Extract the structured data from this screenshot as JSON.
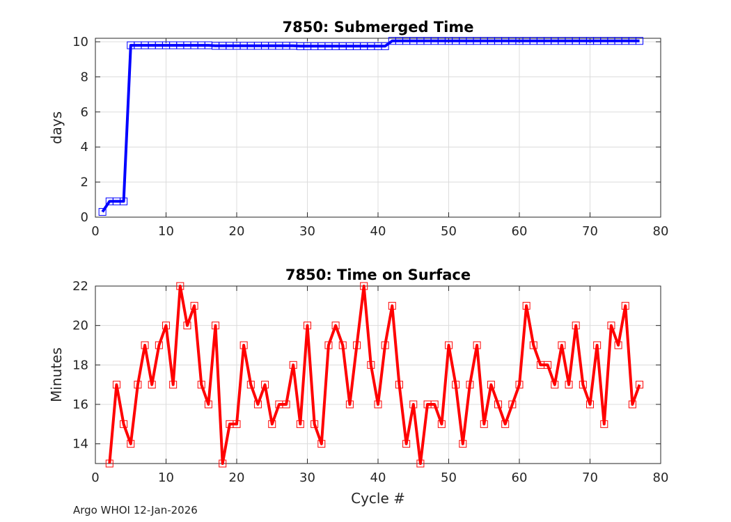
{
  "footer": "Argo WHOI 12-Jan-2026",
  "chart_data": [
    {
      "type": "line",
      "title": "7850: Submerged Time",
      "xlabel": "",
      "ylabel": "days",
      "xlim": [
        0,
        80
      ],
      "ylim": [
        0,
        10.2
      ],
      "xticks": [
        0,
        10,
        20,
        30,
        40,
        50,
        60,
        70,
        80
      ],
      "yticks": [
        0,
        2,
        4,
        6,
        8,
        10
      ],
      "grid": true,
      "marker": "square",
      "color": "#0000ff",
      "x": [
        1,
        2,
        3,
        4,
        5,
        6,
        7,
        8,
        9,
        10,
        11,
        12,
        13,
        14,
        15,
        16,
        17,
        18,
        19,
        20,
        21,
        22,
        23,
        24,
        25,
        26,
        27,
        28,
        29,
        30,
        31,
        32,
        33,
        34,
        35,
        36,
        37,
        38,
        39,
        40,
        41,
        42,
        43,
        44,
        45,
        46,
        47,
        48,
        49,
        50,
        51,
        52,
        53,
        54,
        55,
        56,
        57,
        58,
        59,
        60,
        61,
        62,
        63,
        64,
        65,
        66,
        67,
        68,
        69,
        70,
        71,
        72,
        73,
        74,
        75,
        76,
        77
      ],
      "y": [
        0.3,
        0.9,
        0.9,
        0.9,
        9.8,
        9.8,
        9.8,
        9.8,
        9.8,
        9.8,
        9.8,
        9.8,
        9.8,
        9.8,
        9.8,
        9.8,
        9.77,
        9.77,
        9.77,
        9.77,
        9.77,
        9.77,
        9.77,
        9.77,
        9.77,
        9.77,
        9.77,
        9.77,
        9.75,
        9.75,
        9.75,
        9.75,
        9.75,
        9.75,
        9.75,
        9.75,
        9.75,
        9.75,
        9.75,
        9.75,
        9.75,
        10.05,
        10.05,
        10.05,
        10.05,
        10.05,
        10.05,
        10.05,
        10.05,
        10.05,
        10.05,
        10.05,
        10.05,
        10.05,
        10.05,
        10.05,
        10.05,
        10.05,
        10.05,
        10.05,
        10.05,
        10.05,
        10.05,
        10.05,
        10.05,
        10.05,
        10.05,
        10.05,
        10.05,
        10.05,
        10.05,
        10.05,
        10.05,
        10.05,
        10.05,
        10.05,
        10.05
      ]
    },
    {
      "type": "line",
      "title": "7850: Time on Surface",
      "xlabel": "Cycle #",
      "ylabel": "Minutes",
      "xlim": [
        0,
        80
      ],
      "ylim": [
        13,
        22
      ],
      "xticks": [
        0,
        10,
        20,
        30,
        40,
        50,
        60,
        70,
        80
      ],
      "yticks": [
        14,
        16,
        18,
        20,
        22
      ],
      "grid": true,
      "marker": "square",
      "color": "#ff0000",
      "x": [
        2,
        3,
        4,
        5,
        6,
        7,
        8,
        9,
        10,
        11,
        12,
        13,
        14,
        15,
        16,
        17,
        18,
        19,
        20,
        21,
        22,
        23,
        24,
        25,
        26,
        27,
        28,
        29,
        30,
        31,
        32,
        33,
        34,
        35,
        36,
        37,
        38,
        39,
        40,
        41,
        42,
        43,
        44,
        45,
        46,
        47,
        48,
        49,
        50,
        51,
        52,
        53,
        54,
        55,
        56,
        57,
        58,
        59,
        60,
        61,
        62,
        63,
        64,
        65,
        66,
        67,
        68,
        69,
        70,
        71,
        72,
        73,
        74,
        75,
        76,
        77
      ],
      "y": [
        13,
        17,
        15,
        14,
        17,
        19,
        17,
        19,
        20,
        17,
        22,
        20,
        21,
        17,
        16,
        20,
        13,
        15,
        15,
        19,
        17,
        16,
        17,
        15,
        16,
        16,
        18,
        15,
        20,
        15,
        14,
        19,
        20,
        19,
        16,
        19,
        22,
        18,
        16,
        19,
        21,
        17,
        14,
        16,
        13,
        16,
        16,
        15,
        19,
        17,
        14,
        17,
        19,
        15,
        17,
        16,
        15,
        16,
        17,
        21,
        19,
        18,
        18,
        17,
        19,
        17,
        20,
        17,
        16,
        19,
        15,
        20,
        19,
        21,
        16,
        17
      ]
    }
  ]
}
